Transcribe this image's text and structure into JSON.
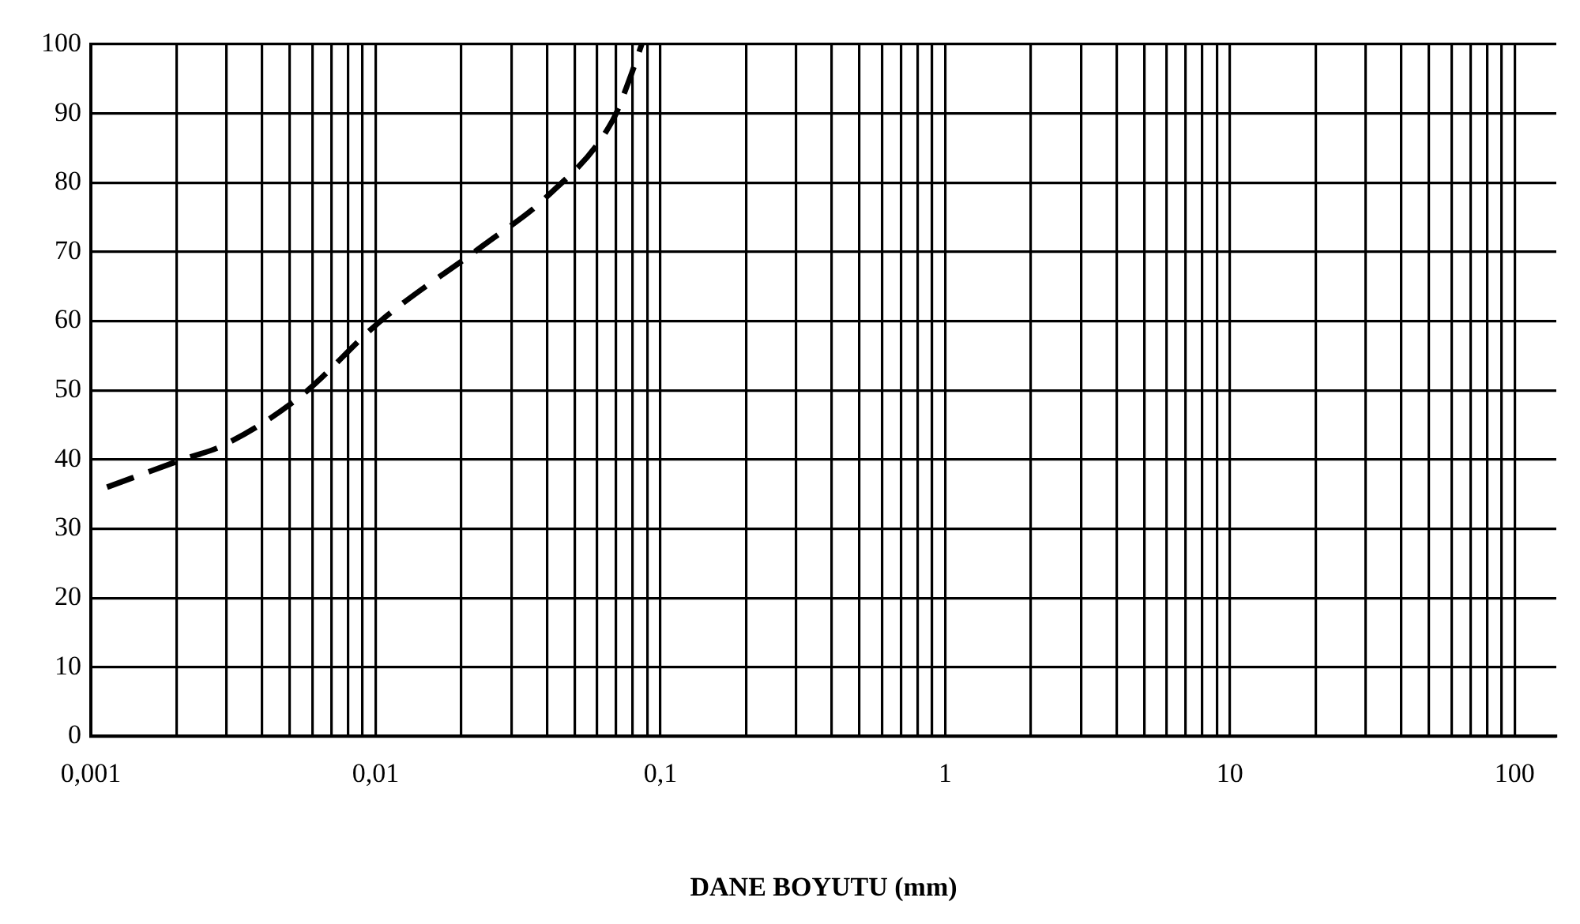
{
  "chart_data": {
    "type": "line",
    "xlabel": "DANE BOYUTU (mm)",
    "log": "x",
    "grid": true,
    "legend": false,
    "marker": "none",
    "line_style": "dashed",
    "xlim": [
      0.001,
      140
    ],
    "ylim": [
      0,
      100
    ],
    "xticks": [
      {
        "value": 0.001,
        "label": "0,001"
      },
      {
        "value": 0.002,
        "label": null
      },
      {
        "value": 0.003,
        "label": null
      },
      {
        "value": 0.004,
        "label": null
      },
      {
        "value": 0.005,
        "label": null
      },
      {
        "value": 0.006,
        "label": null
      },
      {
        "value": 0.007,
        "label": null
      },
      {
        "value": 0.008,
        "label": null
      },
      {
        "value": 0.009,
        "label": null
      },
      {
        "value": 0.01,
        "label": "0,01"
      },
      {
        "value": 0.02,
        "label": null
      },
      {
        "value": 0.03,
        "label": null
      },
      {
        "value": 0.04,
        "label": null
      },
      {
        "value": 0.05,
        "label": null
      },
      {
        "value": 0.06,
        "label": null
      },
      {
        "value": 0.07,
        "label": null
      },
      {
        "value": 0.08,
        "label": null
      },
      {
        "value": 0.09,
        "label": null
      },
      {
        "value": 0.1,
        "label": "0,1"
      },
      {
        "value": 0.2,
        "label": null
      },
      {
        "value": 0.3,
        "label": null
      },
      {
        "value": 0.4,
        "label": null
      },
      {
        "value": 0.5,
        "label": null
      },
      {
        "value": 0.6,
        "label": null
      },
      {
        "value": 0.7,
        "label": null
      },
      {
        "value": 0.8,
        "label": null
      },
      {
        "value": 0.9,
        "label": null
      },
      1,
      {
        "value": 2,
        "label": null
      },
      {
        "value": 3,
        "label": null
      },
      {
        "value": 4,
        "label": null
      },
      {
        "value": 5,
        "label": null
      },
      {
        "value": 6,
        "label": null
      },
      {
        "value": 7,
        "label": null
      },
      {
        "value": 8,
        "label": null
      },
      {
        "value": 9,
        "label": null
      },
      10,
      {
        "value": 20,
        "label": null
      },
      {
        "value": 30,
        "label": null
      },
      {
        "value": 40,
        "label": null
      },
      {
        "value": 50,
        "label": null
      },
      {
        "value": 60,
        "label": null
      },
      {
        "value": 70,
        "label": null
      },
      {
        "value": 80,
        "label": null
      },
      {
        "value": 90,
        "label": null
      },
      100
    ],
    "yticks": [
      0,
      10,
      20,
      30,
      40,
      50,
      60,
      70,
      80,
      90,
      100
    ],
    "x": [
      0.00114,
      0.0021,
      0.0029,
      0.0054,
      0.0104,
      0.024,
      0.04,
      0.068,
      0.078,
      0.086
    ],
    "series": [
      {
        "color": "#000000",
        "values": [
          36,
          40,
          42,
          49,
          60,
          71,
          78,
          89,
          95,
          100
        ]
      }
    ]
  }
}
